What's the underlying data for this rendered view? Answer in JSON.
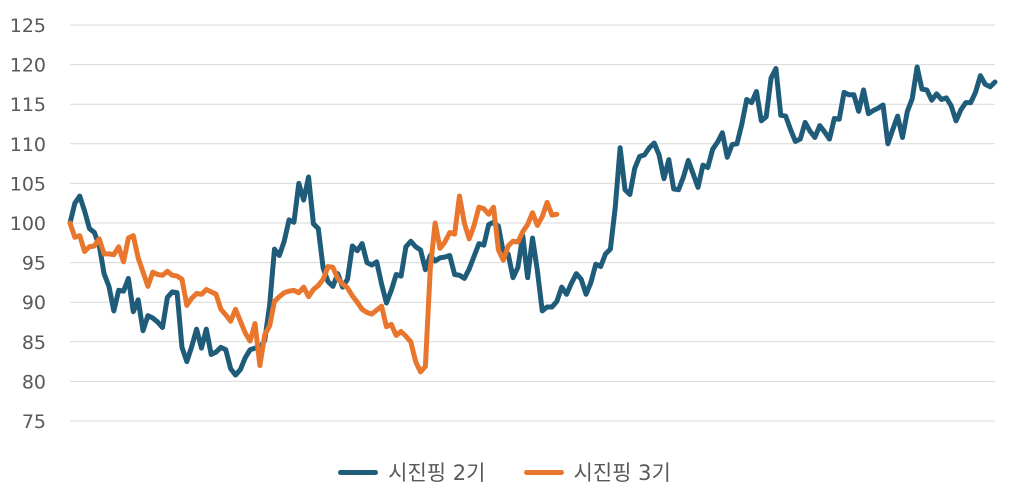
{
  "chart_data": {
    "type": "line",
    "title": "",
    "xlabel": "",
    "ylabel": "",
    "ylim": [
      75,
      125
    ],
    "yticks": [
      75,
      80,
      85,
      90,
      95,
      100,
      105,
      110,
      115,
      120,
      125
    ],
    "grid": true,
    "legend_position": "bottom",
    "series": [
      {
        "name": "시진핑 2기",
        "color": "#1F5C7A",
        "values": [
          100,
          102.5,
          103.4,
          101.5,
          99.3,
          98.8,
          97.2,
          93.6,
          92,
          88.9,
          91.5,
          91.4,
          93,
          88.8,
          90.3,
          86.4,
          88.3,
          88,
          87.5,
          86.8,
          90.6,
          91.3,
          91.2,
          84.3,
          82.5,
          84.4,
          86.6,
          84.2,
          86.6,
          83.4,
          83.7,
          84.3,
          84,
          81.6,
          80.8,
          81.5,
          83,
          84,
          84.2,
          84.2,
          85.2,
          89.6,
          96.7,
          95.9,
          97.7,
          100.4,
          100.1,
          105,
          102.9,
          105.8,
          99.9,
          99.3,
          94.3,
          92.6,
          92,
          93.6,
          91.9,
          92.9,
          97.1,
          96.5,
          97.4,
          95,
          94.7,
          95.1,
          92.3,
          89.9,
          91.5,
          93.5,
          93.3,
          97,
          97.7,
          97,
          96.6,
          94.1,
          95.9,
          95.2,
          95.6,
          95.7,
          95.9,
          93.5,
          93.4,
          93,
          94.2,
          95.8,
          97.4,
          97.2,
          99.8,
          100.1,
          99.6,
          96.3,
          96.1,
          93.1,
          94.4,
          98.4,
          93.1,
          98.1,
          94,
          88.9,
          89.4,
          89.4,
          90.1,
          91.9,
          91,
          92.4,
          93.6,
          92.9,
          91,
          92.5,
          94.8,
          94.5,
          96.1,
          96.7,
          102,
          109.5,
          104.2,
          103.6,
          106.9,
          108.4,
          108.6,
          109.5,
          110.1,
          108.6,
          105.6,
          108,
          104.3,
          104.2,
          105.8,
          107.9,
          106.2,
          104.5,
          107.3,
          107,
          109.3,
          110.2,
          111.4,
          108.3,
          109.9,
          110,
          112.5,
          115.6,
          115.2,
          116.6,
          112.9,
          113.4,
          118.3,
          119.5,
          113.6,
          113.5,
          111.8,
          110.3,
          110.6,
          112.7,
          111.6,
          110.8,
          112.3,
          111.5,
          110.6,
          113.2,
          113.1,
          116.5,
          116.2,
          116.2,
          114.1,
          116.8,
          113.8,
          114.2,
          114.5,
          114.9,
          110,
          111.8,
          113.5,
          110.8,
          114.1,
          115.7,
          119.7,
          116.9,
          116.8,
          115.5,
          116.3,
          115.6,
          115.8,
          114.8,
          112.9,
          114.3,
          115.2,
          115.2,
          116.5,
          118.6,
          117.5,
          117.2,
          117.8
        ]
      },
      {
        "name": "시진핑 3기",
        "color": "#E8762D",
        "values": [
          100,
          98.2,
          98.4,
          96.4,
          97,
          97.1,
          98,
          96.1,
          96.1,
          96,
          97,
          95.1,
          98.1,
          98.4,
          95.6,
          93.8,
          92,
          93.8,
          93.5,
          93.4,
          93.9,
          93.4,
          93.3,
          92.9,
          89.6,
          90.5,
          91.1,
          91,
          91.6,
          91.3,
          91,
          89.1,
          88.4,
          87.6,
          89.1,
          87.6,
          86.1,
          85.1,
          87.3,
          82,
          85.9,
          87,
          90.1,
          90.7,
          91.2,
          91.4,
          91.5,
          91.2,
          91.9,
          90.7,
          91.6,
          92.1,
          92.9,
          94.5,
          94.4,
          93,
          92.3,
          91.8,
          90.8,
          90,
          89.1,
          88.7,
          88.5,
          89,
          89.5,
          86.9,
          87.2,
          85.8,
          86.3,
          85.7,
          85,
          82.5,
          81.2,
          81.9,
          94.2,
          100,
          96.8,
          97.6,
          98.8,
          98.6,
          103.4,
          100,
          98,
          99.7,
          102,
          101.8,
          101.1,
          102,
          96.6,
          95.3,
          97.1,
          97.7,
          97.6,
          98.9,
          99.8,
          101.3,
          99.7,
          100.8,
          102.6,
          101,
          101.1
        ]
      }
    ]
  },
  "legend": {
    "items": [
      {
        "label": "시진핑 2기",
        "color": "#1F5C7A"
      },
      {
        "label": "시진핑 3기",
        "color": "#E8762D"
      }
    ]
  }
}
